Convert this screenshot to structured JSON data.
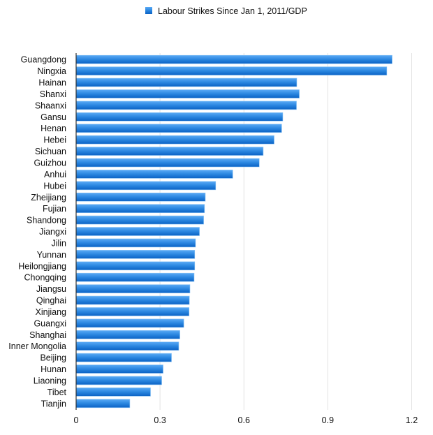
{
  "chart_data": {
    "type": "bar",
    "orientation": "horizontal",
    "title": "",
    "xlabel": "",
    "ylabel": "",
    "xlim": [
      0,
      1.2
    ],
    "xticks": [
      "0",
      "0.3",
      "0.6",
      "0.9",
      "1.2"
    ],
    "grid": true,
    "legend_placement": "top",
    "bar_color": "#2a86e0",
    "categories": [
      "Guangdong",
      "Ningxia",
      "Hainan",
      "Shanxi",
      "Shaanxi",
      "Gansu",
      "Henan",
      "Hebei",
      "Sichuan",
      "Guizhou",
      "Anhui",
      "Hubei",
      "Zheijiang",
      "Fujian",
      "Shandong",
      "Jiangxi",
      "Jilin",
      "Yunnan",
      "Heilongjiang",
      "Chongqing",
      "Jiangsu",
      "Qinghai",
      "Xinjiang",
      "Guangxi",
      "Shanghai",
      "Inner Mongolia",
      "Beijing",
      "Hunan",
      "Liaoning",
      "Tibet",
      "Tianjin"
    ],
    "series": [
      {
        "name": "Labour Strikes Since Jan 1, 2011/GDP",
        "values": [
          1.13,
          1.111,
          0.789,
          0.798,
          0.788,
          0.739,
          0.735,
          0.708,
          0.669,
          0.655,
          0.56,
          0.499,
          0.462,
          0.459,
          0.456,
          0.441,
          0.427,
          0.424,
          0.424,
          0.422,
          0.407,
          0.405,
          0.404,
          0.385,
          0.371,
          0.367,
          0.341,
          0.311,
          0.306,
          0.266,
          0.192
        ]
      }
    ]
  }
}
